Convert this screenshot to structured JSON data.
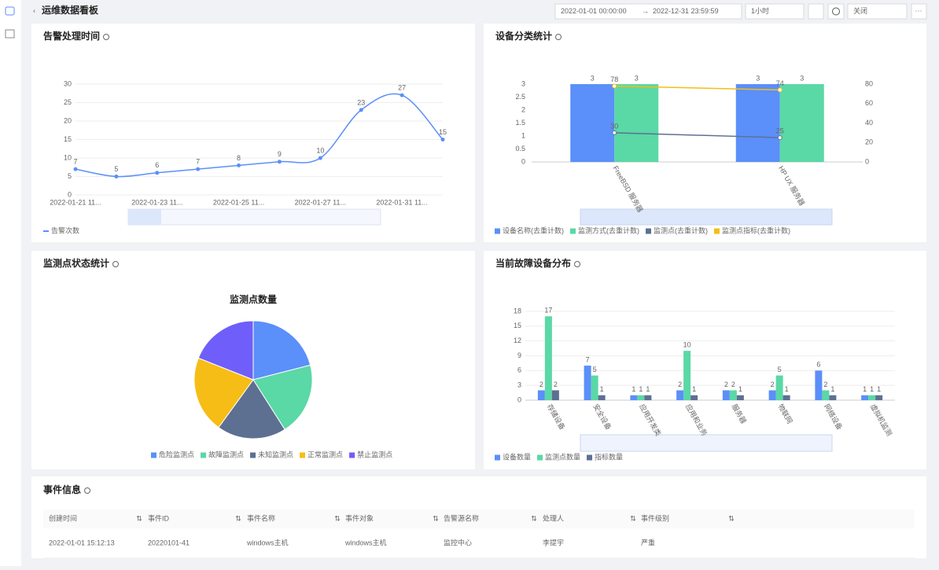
{
  "header": {
    "title": "运维数据看板",
    "start": "2022-01-01 00:00:00",
    "end": "2022-12-31 23:59:59",
    "interval": "1小时",
    "refresh": "关闭"
  },
  "chart_data": [
    {
      "type": "line",
      "title": "告警处理时间",
      "categories": [
        "2022-01-21 11...",
        null,
        "2022-01-23 11...",
        null,
        "2022-01-25 11...",
        null,
        "2022-01-27 11...",
        null,
        "2022-01-31 11...",
        null
      ],
      "series": [
        {
          "name": "告警次数",
          "color": "#5b8ff9",
          "values": [
            7,
            5,
            6,
            7,
            8,
            9,
            10,
            23,
            27,
            15
          ]
        }
      ],
      "ylim": [
        0,
        30
      ],
      "yticks": [
        0,
        5,
        10,
        15,
        20,
        25,
        30
      ],
      "grid": true
    },
    {
      "type": "combo",
      "title": "设备分类统计",
      "categories": [
        "FreeBSD 服务器",
        "HP UX 服务器"
      ],
      "series": [
        {
          "name": "设备名称(去重计数)",
          "color": "#5b8ff9",
          "kind": "bar",
          "values": [
            3,
            3
          ]
        },
        {
          "name": "监测方式(去重计数)",
          "color": "#5ad8a6",
          "kind": "bar",
          "values": [
            3,
            3
          ]
        },
        {
          "name": "监测点(去重计数)",
          "color": "#5d7092",
          "kind": "line",
          "axis": "y2",
          "values": [
            30,
            25
          ]
        },
        {
          "name": "监测点指标(去重计数)",
          "color": "#f6bd16",
          "kind": "line",
          "axis": "y2",
          "values": [
            78,
            74
          ]
        }
      ],
      "ylim": [
        0,
        3
      ],
      "yticks": [
        0,
        0.5,
        1,
        1.5,
        2,
        2.5,
        3
      ],
      "y2lim": [
        0,
        80
      ],
      "y2ticks": [
        0,
        20,
        40,
        60,
        80
      ]
    },
    {
      "type": "pie",
      "title": "监测点状态统计",
      "subtitle": "监测点数量",
      "categories": [
        "危险监测点",
        "故障监测点",
        "未知监测点",
        "正常监测点",
        "禁止监测点"
      ],
      "values": [
        21,
        20,
        19,
        21,
        19
      ],
      "colors": [
        "#5b8ff9",
        "#5ad8a6",
        "#5d7092",
        "#f6bd16",
        "#6f5ef9"
      ]
    },
    {
      "type": "bar",
      "title": "当前故障设备分布",
      "categories": [
        "存储设备",
        "安全设备",
        "应用开发类",
        "应用和业务",
        "服务器",
        "物联网",
        "网络设备",
        "虚拟机监测"
      ],
      "series": [
        {
          "name": "设备数量",
          "color": "#5b8ff9",
          "values": [
            2,
            7,
            1,
            2,
            2,
            2,
            6,
            1
          ]
        },
        {
          "name": "监测点数量",
          "color": "#5ad8a6",
          "values": [
            17,
            5,
            1,
            10,
            2,
            5,
            2,
            1
          ]
        },
        {
          "name": "指标数量",
          "color": "#5d7092",
          "values": [
            2,
            1,
            1,
            1,
            1,
            1,
            1,
            1
          ]
        }
      ],
      "ylim": [
        0,
        18
      ],
      "yticks": [
        0,
        3,
        6,
        9,
        12,
        15,
        18
      ],
      "grid": true
    }
  ],
  "table": {
    "title": "事件信息",
    "columns": [
      "创建时间",
      "事件ID",
      "事件名称",
      "事件对象",
      "告警源名称",
      "处理人",
      "事件级别"
    ],
    "rows": [
      [
        "2022-01-01 15:12:13",
        "20220101-41",
        "windows主机",
        "windows主机",
        "监控中心",
        "李提宇",
        "严重"
      ]
    ]
  }
}
